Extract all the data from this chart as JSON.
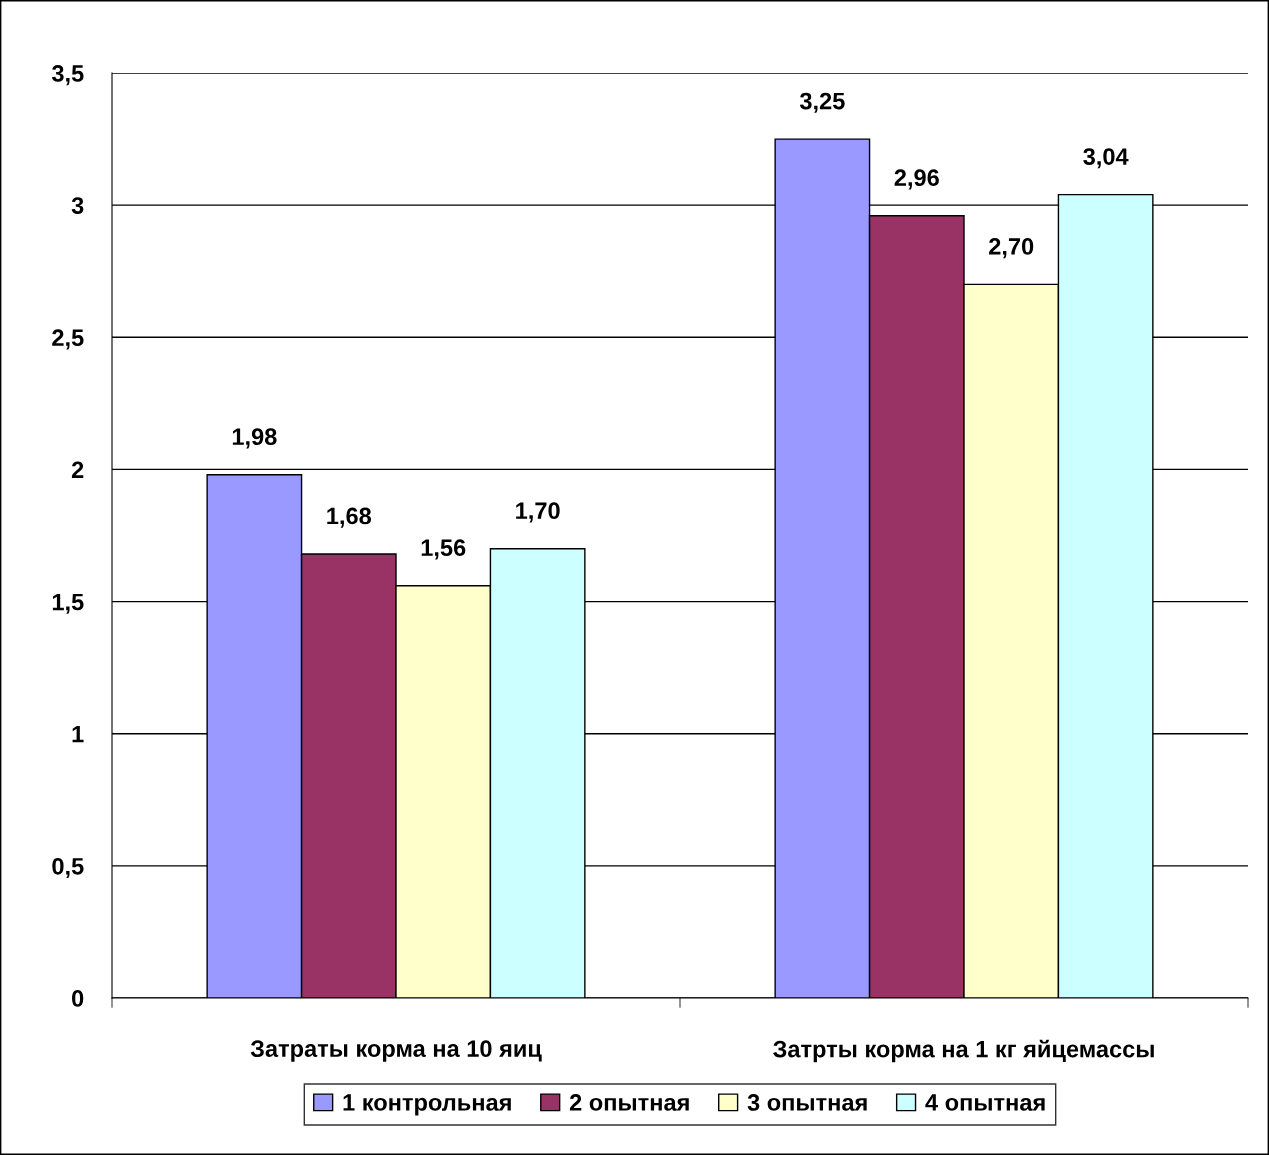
{
  "chart_data": {
    "type": "bar",
    "categories": [
      "Затраты корма на 10 яиц",
      "Затрты корма на 1 кг яйцемассы"
    ],
    "series": [
      {
        "name": "1 контрольная",
        "color": "#9999ff",
        "values": [
          1.98,
          3.25
        ],
        "value_labels": [
          "1,98",
          "3,25"
        ]
      },
      {
        "name": "2 опытная",
        "color": "#993366",
        "values": [
          1.68,
          2.96
        ],
        "value_labels": [
          "1,68",
          "2,96"
        ]
      },
      {
        "name": "3 опытная",
        "color": "#ffffcc",
        "values": [
          1.56,
          2.7
        ],
        "value_labels": [
          "1,56",
          "2,70"
        ]
      },
      {
        "name": "4 опытная",
        "color": "#ccffff",
        "values": [
          1.7,
          3.04
        ],
        "value_labels": [
          "1,70",
          "3,04"
        ]
      }
    ],
    "ylim": [
      0,
      3.5
    ],
    "yticks": [
      0,
      {
        "value": 0.5,
        "label": "0,5"
      },
      1,
      {
        "value": 1.5,
        "label": "1,5"
      },
      2,
      {
        "value": 2.5,
        "label": "2,5"
      },
      3,
      {
        "value": 3.5,
        "label": "3,5"
      }
    ],
    "grid": "y",
    "legend": "bottom"
  }
}
